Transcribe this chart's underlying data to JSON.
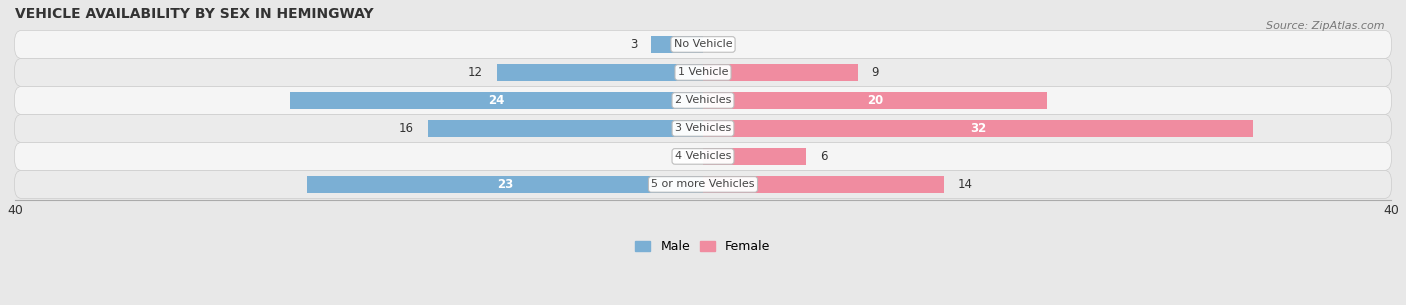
{
  "title": "VEHICLE AVAILABILITY BY SEX IN HEMINGWAY",
  "source": "Source: ZipAtlas.com",
  "categories": [
    "No Vehicle",
    "1 Vehicle",
    "2 Vehicles",
    "3 Vehicles",
    "4 Vehicles",
    "5 or more Vehicles"
  ],
  "male_values": [
    3,
    12,
    24,
    16,
    0,
    23
  ],
  "female_values": [
    0,
    9,
    20,
    32,
    6,
    14
  ],
  "male_color": "#7bafd4",
  "female_color": "#f08ca0",
  "male_label": "Male",
  "female_label": "Female",
  "xlim": [
    -40,
    40
  ],
  "bar_height": 0.62,
  "background_color": "#e8e8e8",
  "row_color_light": "#f5f5f5",
  "row_color_dark": "#ebebeb",
  "title_fontsize": 10,
  "source_fontsize": 8,
  "label_fontsize": 8,
  "value_fontsize": 8.5,
  "inside_threshold": 18
}
